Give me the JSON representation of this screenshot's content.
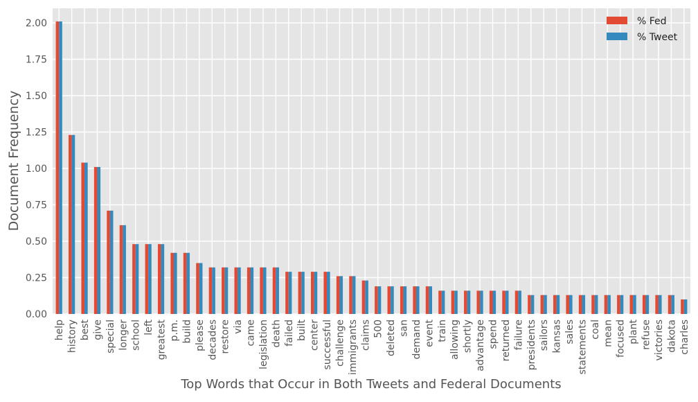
{
  "chart_data": {
    "type": "bar",
    "xlabel": "Top Words that Occur in Both Tweets and Federal Documents",
    "ylabel": "Document Frequency",
    "ylim": [
      0,
      2.1
    ],
    "yticks": [
      "0.00",
      "0.25",
      "0.50",
      "0.75",
      "1.00",
      "1.25",
      "1.50",
      "1.75",
      "2.00"
    ],
    "grid": true,
    "legend_position": "top-right",
    "categories": [
      "help",
      "history",
      "best",
      "give",
      "special",
      "longer",
      "school",
      "left",
      "greatest",
      "p.m.",
      "build",
      "please",
      "decades",
      "restore",
      "via",
      "came",
      "legislation",
      "death",
      "failed",
      "built",
      "center",
      "successful",
      "challenge",
      "immigrants",
      "claims",
      "500",
      "deleted",
      "san",
      "demand",
      "event",
      "train",
      "allowing",
      "shortly",
      "advantage",
      "spend",
      "returned",
      "failure",
      "presidents",
      "sailors",
      "kansas",
      "sales",
      "statements",
      "coal",
      "mean",
      "focused",
      "plant",
      "refuse",
      "victories",
      "dakota",
      "charles"
    ],
    "series": [
      {
        "name": "% Fed",
        "color": "#E24A33",
        "values": [
          2.01,
          1.23,
          1.04,
          1.01,
          0.71,
          0.61,
          0.48,
          0.48,
          0.48,
          0.42,
          0.42,
          0.35,
          0.32,
          0.32,
          0.32,
          0.32,
          0.32,
          0.32,
          0.29,
          0.29,
          0.29,
          0.29,
          0.26,
          0.26,
          0.23,
          0.19,
          0.19,
          0.19,
          0.19,
          0.19,
          0.16,
          0.16,
          0.16,
          0.16,
          0.16,
          0.16,
          0.16,
          0.13,
          0.13,
          0.13,
          0.13,
          0.13,
          0.13,
          0.13,
          0.13,
          0.13,
          0.13,
          0.13,
          0.13,
          0.1
        ]
      },
      {
        "name": "% Tweet",
        "color": "#348ABD",
        "values": [
          2.01,
          1.23,
          1.04,
          1.01,
          0.71,
          0.61,
          0.48,
          0.48,
          0.48,
          0.42,
          0.42,
          0.35,
          0.32,
          0.32,
          0.32,
          0.32,
          0.32,
          0.32,
          0.29,
          0.29,
          0.29,
          0.29,
          0.26,
          0.26,
          0.23,
          0.19,
          0.19,
          0.19,
          0.19,
          0.19,
          0.16,
          0.16,
          0.16,
          0.16,
          0.16,
          0.16,
          0.16,
          0.13,
          0.13,
          0.13,
          0.13,
          0.13,
          0.13,
          0.13,
          0.13,
          0.13,
          0.13,
          0.13,
          0.13,
          0.1
        ]
      }
    ]
  }
}
